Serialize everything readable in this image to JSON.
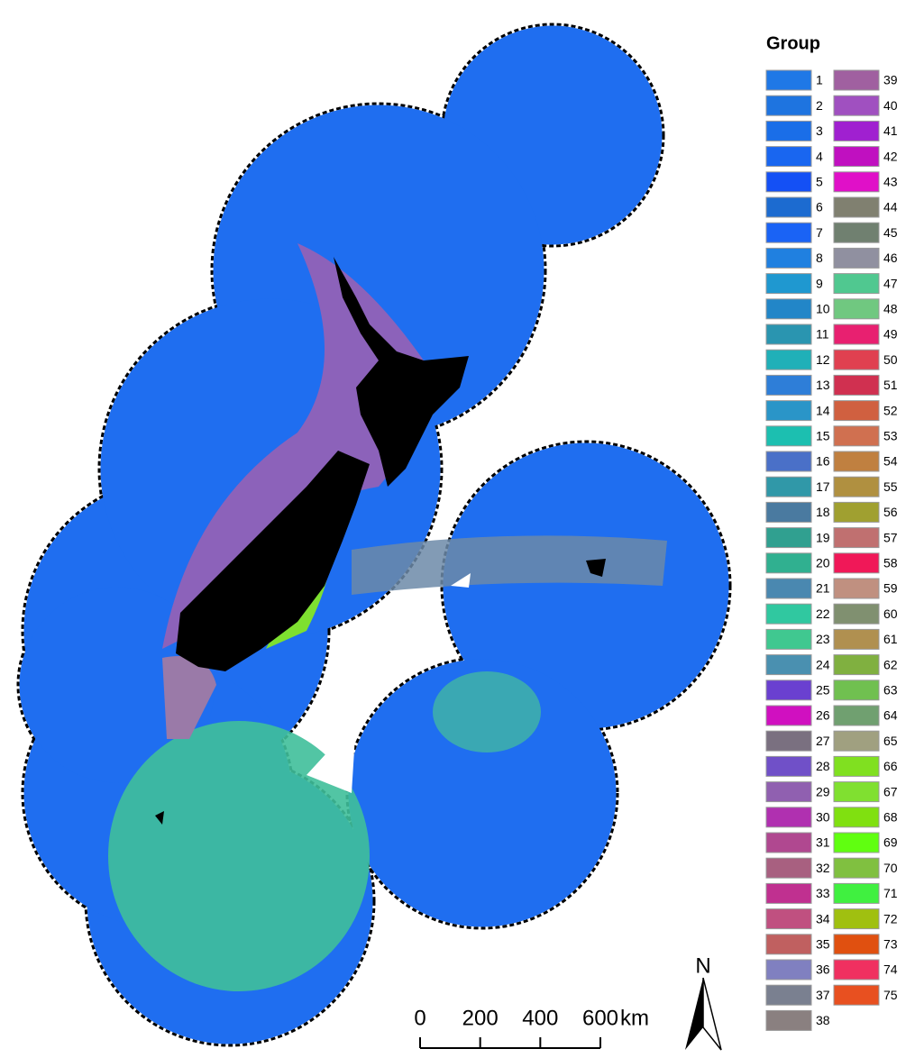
{
  "legend": {
    "title": "Group",
    "items": [
      {
        "label": "1",
        "color": "#1f78e6"
      },
      {
        "label": "2",
        "color": "#1e74e0"
      },
      {
        "label": "3",
        "color": "#1a6ee8"
      },
      {
        "label": "4",
        "color": "#1966f0"
      },
      {
        "label": "5",
        "color": "#1450f5"
      },
      {
        "label": "6",
        "color": "#1c6bd0"
      },
      {
        "label": "7",
        "color": "#1a63f5"
      },
      {
        "label": "8",
        "color": "#2080e0"
      },
      {
        "label": "9",
        "color": "#1f98d0"
      },
      {
        "label": "10",
        "color": "#2286c8"
      },
      {
        "label": "11",
        "color": "#2a95b0"
      },
      {
        "label": "12",
        "color": "#20b0b8"
      },
      {
        "label": "13",
        "color": "#2e7ed8"
      },
      {
        "label": "14",
        "color": "#2a95c8"
      },
      {
        "label": "15",
        "color": "#1cbfb0"
      },
      {
        "label": "16",
        "color": "#4a70c8"
      },
      {
        "label": "17",
        "color": "#3098a8"
      },
      {
        "label": "18",
        "color": "#4a7aa0"
      },
      {
        "label": "19",
        "color": "#30a090"
      },
      {
        "label": "20",
        "color": "#30b090"
      },
      {
        "label": "21",
        "color": "#4a88b0"
      },
      {
        "label": "22",
        "color": "#30c8a0"
      },
      {
        "label": "23",
        "color": "#40c890"
      },
      {
        "label": "24",
        "color": "#4a90b0"
      },
      {
        "label": "25",
        "color": "#6a40d0"
      },
      {
        "label": "26",
        "color": "#d010c0"
      },
      {
        "label": "27",
        "color": "#7a7080"
      },
      {
        "label": "28",
        "color": "#7050c8"
      },
      {
        "label": "29",
        "color": "#9060b0"
      },
      {
        "label": "30",
        "color": "#b030b0"
      },
      {
        "label": "31",
        "color": "#b04890"
      },
      {
        "label": "32",
        "color": "#a86080"
      },
      {
        "label": "33",
        "color": "#c03090"
      },
      {
        "label": "34",
        "color": "#c05080"
      },
      {
        "label": "35",
        "color": "#c06060"
      },
      {
        "label": "36",
        "color": "#8080c0"
      },
      {
        "label": "37",
        "color": "#7a8090"
      },
      {
        "label": "38",
        "color": "#8a8080"
      },
      {
        "label": "39",
        "color": "#a060a0"
      },
      {
        "label": "40",
        "color": "#a050c0"
      },
      {
        "label": "41",
        "color": "#a020d0"
      },
      {
        "label": "42",
        "color": "#c010c0"
      },
      {
        "label": "43",
        "color": "#e010c8"
      },
      {
        "label": "44",
        "color": "#808070"
      },
      {
        "label": "45",
        "color": "#708070"
      },
      {
        "label": "46",
        "color": "#9090a0"
      },
      {
        "label": "47",
        "color": "#50c890"
      },
      {
        "label": "48",
        "color": "#70c880"
      },
      {
        "label": "49",
        "color": "#e82070"
      },
      {
        "label": "50",
        "color": "#e04050"
      },
      {
        "label": "51",
        "color": "#d03050"
      },
      {
        "label": "52",
        "color": "#d06040"
      },
      {
        "label": "53",
        "color": "#d07050"
      },
      {
        "label": "54",
        "color": "#c08040"
      },
      {
        "label": "55",
        "color": "#b09040"
      },
      {
        "label": "56",
        "color": "#a0a030"
      },
      {
        "label": "57",
        "color": "#c07070"
      },
      {
        "label": "58",
        "color": "#f01858"
      },
      {
        "label": "59",
        "color": "#c09080"
      },
      {
        "label": "60",
        "color": "#809070"
      },
      {
        "label": "61",
        "color": "#b09050"
      },
      {
        "label": "62",
        "color": "#80b040"
      },
      {
        "label": "63",
        "color": "#70c050"
      },
      {
        "label": "64",
        "color": "#70a070"
      },
      {
        "label": "65",
        "color": "#a0a080"
      },
      {
        "label": "66",
        "color": "#80e020"
      },
      {
        "label": "67",
        "color": "#80e030"
      },
      {
        "label": "68",
        "color": "#80e010"
      },
      {
        "label": "69",
        "color": "#60ff10"
      },
      {
        "label": "70",
        "color": "#80c040"
      },
      {
        "label": "71",
        "color": "#40f040"
      },
      {
        "label": "72",
        "color": "#a0c010"
      },
      {
        "label": "73",
        "color": "#e05010"
      },
      {
        "label": "74",
        "color": "#f03060"
      },
      {
        "label": "75",
        "color": "#e85020"
      }
    ]
  },
  "scale_bar": {
    "ticks": [
      0,
      200,
      400,
      600
    ],
    "unit": "km"
  },
  "north_arrow": {
    "label": "N"
  }
}
